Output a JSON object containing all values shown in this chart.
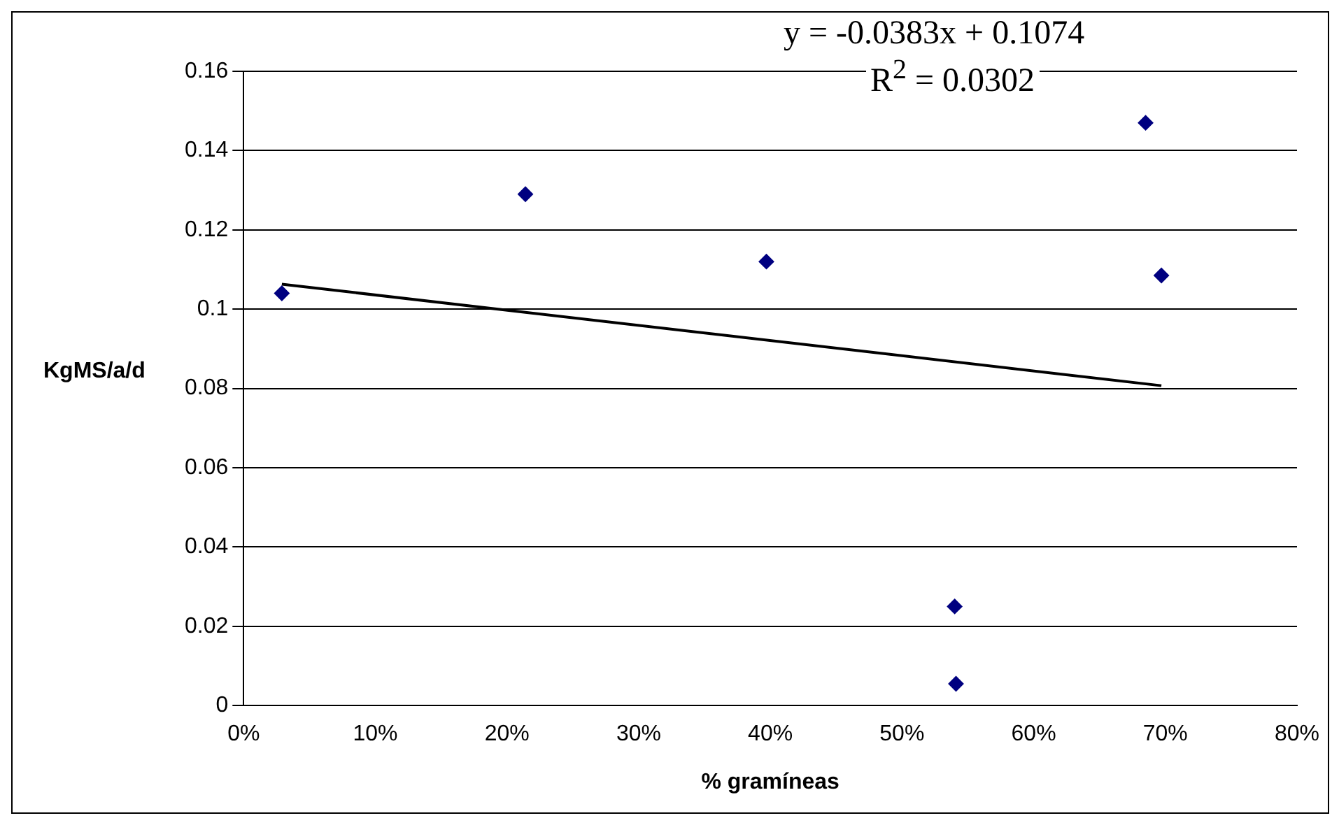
{
  "chart_data": {
    "type": "scatter",
    "xlabel": "% gramíneas",
    "ylabel": "KgMS/a/d",
    "annotations": [
      "y = -0.0383x + 0.1074",
      "R$^{2}$ = 0.0302"
    ],
    "series": [
      {
        "color": "#000080",
        "marker": "diamond",
        "x": [
          0.029,
          0.214,
          0.397,
          0.54,
          0.541,
          0.685,
          0.697
        ],
        "values": [
          0.104,
          0.129,
          0.112,
          0.025,
          0.0055,
          0.147,
          0.1085
        ]
      },
      {
        "type": "line",
        "marker": "none",
        "color": "#000000",
        "x": [
          0.029,
          0.697
        ],
        "values": [
          0.1063,
          0.0807
        ]
      }
    ],
    "xlim": [
      0,
      0.8
    ],
    "xticks": [
      {
        "value": 0,
        "label": "0%"
      },
      {
        "value": 0.1,
        "label": "10%"
      },
      {
        "value": 0.2,
        "label": "20%"
      },
      {
        "value": 0.3,
        "label": "30%"
      },
      {
        "value": 0.4,
        "label": "40%"
      },
      {
        "value": 0.5,
        "label": "50%"
      },
      {
        "value": 0.6,
        "label": "60%"
      },
      {
        "value": 0.7,
        "label": "70%"
      },
      {
        "value": 0.8,
        "label": "80%"
      }
    ],
    "ylim": [
      0,
      0.16
    ],
    "yticks": [
      0,
      0.02,
      0.04,
      0.06,
      0.08,
      0.1,
      0.12,
      0.14,
      0.16
    ],
    "grid": "y",
    "legend": false
  }
}
